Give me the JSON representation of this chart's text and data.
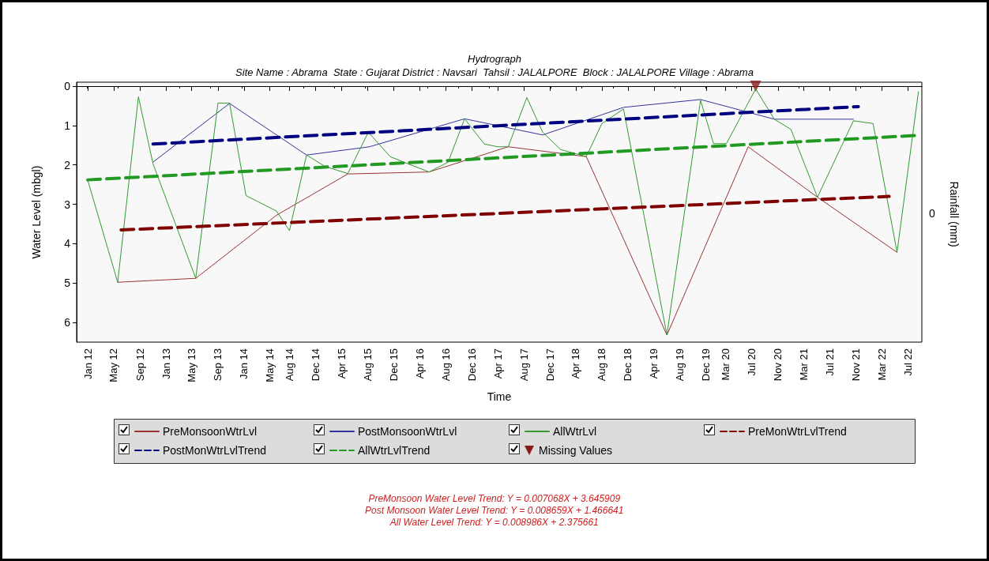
{
  "chart_data": {
    "type": "line",
    "title": "Hydrograph",
    "subtitle": "Site Name : Abrama  State : Gujarat District : Navsari  Tahsil : JALALPORE  Block : JALALPORE Village : Abrama",
    "xlabel": "Time",
    "ylabel": "Water Level (mbgl)",
    "y2label": "Rainfall (mm)",
    "xlim": [
      "2011-11-10",
      "2022-09-05"
    ],
    "xticks": [
      {
        "value": "2012-01-01",
        "label": "Jan 12"
      },
      {
        "value": "2012-05-01",
        "label": "May 12"
      },
      {
        "value": "2012-09-01",
        "label": "Sep 12"
      },
      {
        "value": "2013-01-01",
        "label": "Jan 13"
      },
      {
        "value": "2013-05-01",
        "label": "May 13"
      },
      {
        "value": "2013-09-01",
        "label": "Sep 13"
      },
      {
        "value": "2014-01-01",
        "label": "Jan 14"
      },
      {
        "value": "2014-05-01",
        "label": "May 14"
      },
      {
        "value": "2014-08-01",
        "label": "Aug 14"
      },
      {
        "value": "2014-12-01",
        "label": "Dec 14"
      },
      {
        "value": "2015-04-01",
        "label": "Apr 15"
      },
      {
        "value": "2015-08-01",
        "label": "Aug 15"
      },
      {
        "value": "2015-12-01",
        "label": "Dec 15"
      },
      {
        "value": "2016-04-01",
        "label": "Apr 16"
      },
      {
        "value": "2016-08-01",
        "label": "Aug 16"
      },
      {
        "value": "2016-12-01",
        "label": "Dec 16"
      },
      {
        "value": "2017-04-01",
        "label": "Apr 17"
      },
      {
        "value": "2017-08-01",
        "label": "Aug 17"
      },
      {
        "value": "2017-12-01",
        "label": "Dec 17"
      },
      {
        "value": "2018-04-01",
        "label": "Apr 18"
      },
      {
        "value": "2018-08-01",
        "label": "Aug 18"
      },
      {
        "value": "2018-12-01",
        "label": "Dec 18"
      },
      {
        "value": "2019-04-01",
        "label": "Apr 19"
      },
      {
        "value": "2019-08-01",
        "label": "Aug 19"
      },
      {
        "value": "2019-12-01",
        "label": "Dec 19"
      },
      {
        "value": "2020-03-01",
        "label": "Mar 20"
      },
      {
        "value": "2020-07-01",
        "label": "Jul 20"
      },
      {
        "value": "2020-11-01",
        "label": "Nov 20"
      },
      {
        "value": "2021-03-01",
        "label": "Mar 21"
      },
      {
        "value": "2021-07-01",
        "label": "Jul 21"
      },
      {
        "value": "2021-11-01",
        "label": "Nov 21"
      },
      {
        "value": "2022-03-01",
        "label": "Mar 22"
      },
      {
        "value": "2022-07-01",
        "label": "Jul 22"
      }
    ],
    "ylim": [
      6.5,
      -0.1
    ],
    "yticks": [
      0,
      1,
      2,
      3,
      4,
      5,
      6
    ],
    "legend": "bottom",
    "marker": "none",
    "series": [
      {
        "name": "PreMonsoonWtrLvl",
        "color": "#993333",
        "x": [
          "2012-05-20",
          "2013-05-20",
          "2014-06-01",
          "2015-05-01",
          "2016-05-15",
          "2017-05-20",
          "2018-05-20",
          "2019-06-01",
          "2020-06-15",
          "2021-05-05",
          "2022-05-12"
        ],
        "values": [
          4.98,
          4.88,
          3.28,
          2.23,
          2.18,
          1.54,
          1.79,
          6.32,
          1.54,
          2.82,
          4.22
        ]
      },
      {
        "name": "PostMonsoonWtrLvl",
        "color": "#333399",
        "x": [
          "2012-11-01",
          "2013-10-25",
          "2014-10-20",
          "2015-08-10",
          "2016-10-28",
          "2017-10-28",
          "2018-11-10",
          "2019-11-05",
          "2020-10-15",
          "2021-10-20"
        ],
        "values": [
          1.93,
          0.44,
          1.75,
          1.54,
          0.83,
          1.24,
          0.54,
          0.34,
          0.84,
          0.84
        ]
      },
      {
        "name": "AllWtrLvl",
        "color": "#339933",
        "x": [
          "2012-01-01",
          "2012-05-20",
          "2012-08-25",
          "2012-11-01",
          "2013-05-20",
          "2013-09-01",
          "2013-10-25",
          "2014-01-10",
          "2014-06-01",
          "2014-08-01",
          "2014-10-20",
          "2015-01-15",
          "2015-05-01",
          "2015-08-05",
          "2015-11-15",
          "2016-02-05",
          "2016-05-15",
          "2016-08-12",
          "2016-10-28",
          "2017-01-28",
          "2017-04-01",
          "2017-05-20",
          "2017-08-15",
          "2017-10-28",
          "2018-01-20",
          "2018-05-20",
          "2018-08-01",
          "2018-11-10",
          "2019-06-01",
          "2019-11-05",
          "2020-01-05",
          "2020-03-05",
          "2020-07-20",
          "2020-10-15",
          "2021-01-01",
          "2021-05-05",
          "2021-10-20",
          "2022-01-20",
          "2022-05-12",
          "2022-08-20"
        ],
        "values": [
          2.39,
          4.98,
          0.27,
          1.97,
          4.88,
          0.43,
          0.43,
          2.78,
          3.17,
          3.67,
          1.75,
          2.04,
          2.22,
          1.17,
          1.79,
          1.97,
          2.18,
          1.93,
          0.83,
          1.47,
          1.54,
          1.54,
          0.29,
          1.17,
          1.61,
          1.79,
          0.95,
          0.58,
          6.32,
          0.36,
          1.46,
          1.46,
          0.07,
          0.84,
          1.1,
          2.82,
          0.88,
          0.95,
          4.22,
          0.14
        ]
      },
      {
        "name": "PreMonWtrLvlTrend",
        "color": "#800000",
        "line_style": "dashed",
        "x": [
          "2012-06-05",
          "2022-04-05"
        ],
        "values": [
          3.65,
          2.8
        ]
      },
      {
        "name": "PostMonWtrLvlTrend",
        "color": "#000080",
        "line_style": "dashed",
        "x": [
          "2012-11-01",
          "2021-11-12"
        ],
        "values": [
          1.47,
          0.52
        ]
      },
      {
        "name": "AllWtrLvlTrend",
        "color": "#229922",
        "line_style": "dashed",
        "x": [
          "2012-01-01",
          "2022-08-20"
        ],
        "values": [
          2.38,
          1.25
        ]
      },
      {
        "name": "Missing Values",
        "type": "scatter",
        "marker": "triangle",
        "color": "#8b1a1a",
        "x": [
          "2020-07-20"
        ],
        "values": [
          0
        ]
      }
    ],
    "annotations": [
      "0",
      "PreMonsoon Water Level Trend: Y = 0.007068X + 3.645909",
      "Post Monsoon Water Level Trend: Y = 0.008659X + 1.466641",
      "All Water Level Trend: Y = 0.008986X + 2.375661"
    ]
  }
}
